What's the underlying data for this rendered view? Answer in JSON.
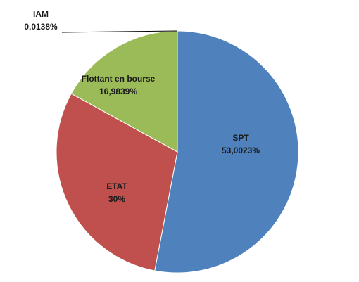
{
  "chart_data": {
    "type": "pie",
    "start": "top",
    "direction": "clockwise",
    "slices": [
      {
        "label": "SPT",
        "percent_text": "53,0023%",
        "value": 53.0023,
        "color": "#4F81BD"
      },
      {
        "label": "ETAT",
        "percent_text": "30%",
        "value": 30.0,
        "color": "#C0504D"
      },
      {
        "label": "Flottant en bourse",
        "percent_text": "16,9839%",
        "value": 16.9839,
        "color": "#9BBB59"
      },
      {
        "label": "IAM",
        "percent_text": "0,0138%",
        "value": 0.0138,
        "color": "#8064A2"
      }
    ]
  }
}
